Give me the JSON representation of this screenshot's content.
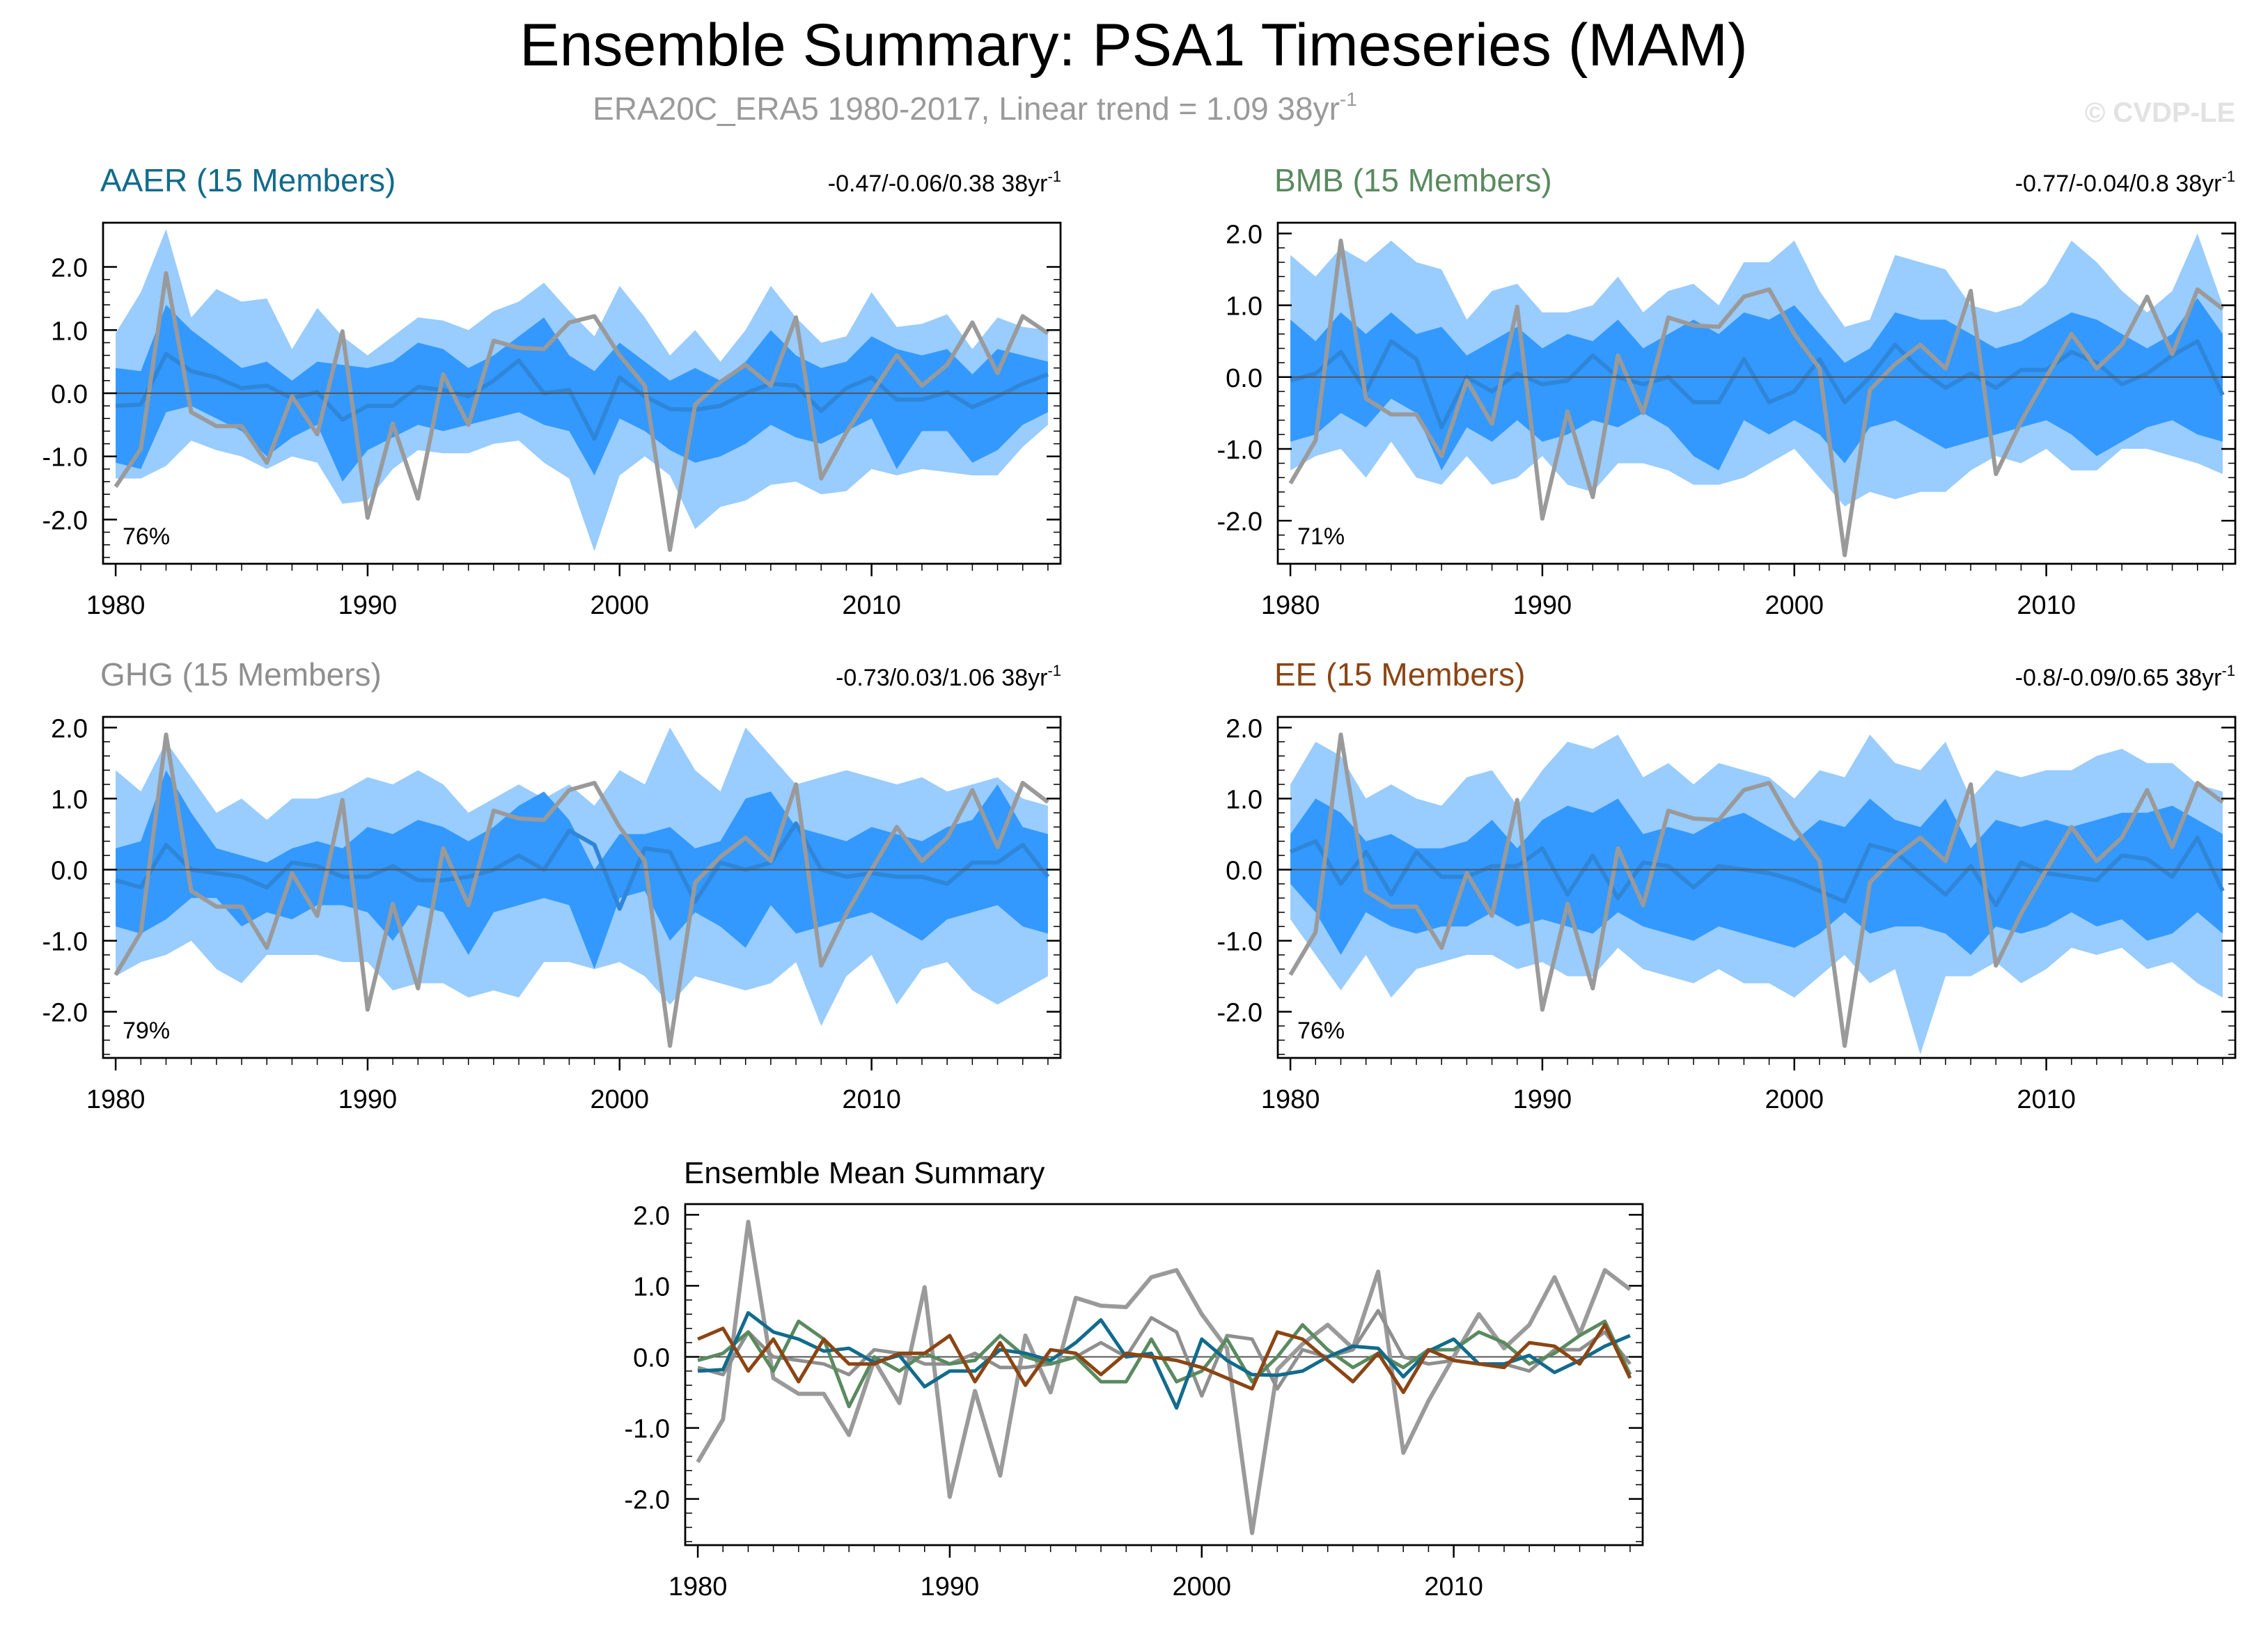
{
  "title": "Ensemble Summary: PSA1 Timeseries (MAM)",
  "subtitle": "ERA20C_ERA5 1980-2017, Linear trend = 1.09 38yr",
  "subtitle_sup": "-1",
  "watermark": "© CVDP-LE",
  "colors": {
    "band_outer": "#99ccff",
    "band_inner": "#3399ff",
    "ens_mean": "#2f86d8",
    "obs": "#9a9a9a",
    "aaer": "#116b8c",
    "bmb": "#5a8a5f",
    "ghg": "#8f8f8f",
    "ee": "#8b4513"
  },
  "chart_data": [
    {
      "id": "aaer",
      "type": "area",
      "label": "AAER (15 Members)",
      "label_color": "#116b8c",
      "trend_stat": "-0.47/-0.06/0.38 38yr",
      "trend_sup": "-1",
      "pct": "76%",
      "x_ticks": [
        "1980",
        "1990",
        "2000",
        "2010"
      ],
      "y_ticks": [
        "2.0",
        "1.0",
        "0.0",
        "-1.0",
        "-2.0"
      ],
      "ylim": [
        -2.7,
        2.7
      ],
      "xlim": [
        1979.5,
        2017.5
      ],
      "years_start": 1980,
      "outer_hi": [
        0.95,
        1.6,
        2.6,
        1.2,
        1.65,
        1.45,
        1.5,
        0.7,
        1.35,
        0.9,
        0.6,
        0.9,
        1.2,
        1.15,
        1.0,
        1.3,
        1.45,
        1.75,
        1.3,
        0.9,
        1.7,
        1.2,
        0.6,
        1.0,
        0.5,
        1.0,
        1.7,
        1.2,
        0.8,
        0.9,
        1.6,
        1.05,
        1.1,
        1.25,
        0.7,
        1.2,
        1.05,
        1.0
      ],
      "inner_hi": [
        0.4,
        0.35,
        1.4,
        1.0,
        0.7,
        0.4,
        0.5,
        0.2,
        0.5,
        0.45,
        0.4,
        0.5,
        0.8,
        0.7,
        0.4,
        0.6,
        0.9,
        1.2,
        0.6,
        0.35,
        0.8,
        0.5,
        0.2,
        0.4,
        0.2,
        0.5,
        1.0,
        0.6,
        0.4,
        0.5,
        0.9,
        0.7,
        0.6,
        0.7,
        0.3,
        0.7,
        0.6,
        0.5
      ],
      "inner_lo": [
        -1.1,
        -1.2,
        -0.3,
        -0.2,
        -0.4,
        -0.6,
        -1.0,
        -0.7,
        -0.5,
        -1.4,
        -0.9,
        -0.7,
        -0.5,
        -0.6,
        -0.5,
        -0.4,
        -0.3,
        -0.5,
        -0.6,
        -1.3,
        -0.4,
        -0.6,
        -0.9,
        -1.1,
        -1.0,
        -0.8,
        -0.5,
        -0.7,
        -0.8,
        -0.6,
        -0.4,
        -1.2,
        -0.6,
        -0.6,
        -1.1,
        -0.9,
        -0.5,
        -0.3
      ],
      "outer_lo": [
        -1.35,
        -1.35,
        -1.15,
        -0.75,
        -0.9,
        -1.0,
        -1.2,
        -1.0,
        -1.1,
        -1.75,
        -1.7,
        -1.2,
        -0.9,
        -0.95,
        -0.95,
        -0.8,
        -0.75,
        -1.1,
        -1.35,
        -2.5,
        -1.3,
        -1.0,
        -1.3,
        -2.15,
        -1.8,
        -1.7,
        -1.45,
        -1.4,
        -1.6,
        -1.55,
        -1.2,
        -1.3,
        -1.2,
        -1.25,
        -1.3,
        -1.3,
        -0.85,
        -0.5
      ],
      "ens_mean": [
        -0.2,
        -0.18,
        0.62,
        0.35,
        0.25,
        0.08,
        0.12,
        -0.08,
        0.02,
        -0.42,
        -0.2,
        -0.2,
        0.1,
        0.05,
        -0.05,
        0.2,
        0.52,
        0.0,
        0.05,
        -0.72,
        0.25,
        -0.05,
        -0.25,
        -0.26,
        -0.2,
        0.0,
        0.15,
        0.12,
        -0.28,
        0.08,
        0.25,
        -0.1,
        -0.1,
        0.02,
        -0.22,
        -0.05,
        0.15,
        0.3
      ],
      "obs": [
        -1.48,
        -0.88,
        1.9,
        -0.3,
        -0.52,
        -0.52,
        -1.1,
        -0.05,
        -0.65,
        0.98,
        -1.97,
        -0.48,
        -1.67,
        0.3,
        -0.5,
        0.83,
        0.72,
        0.7,
        1.12,
        1.22,
        0.6,
        0.12,
        -2.48,
        -0.18,
        0.18,
        0.45,
        0.12,
        1.2,
        -1.35,
        -0.62,
        0.0,
        0.6,
        0.12,
        0.45,
        1.12,
        0.32,
        1.22,
        0.95
      ]
    },
    {
      "id": "bmb",
      "type": "area",
      "label": "BMB (15 Members)",
      "label_color": "#5a8a5f",
      "trend_stat": "-0.77/-0.04/0.8 38yr",
      "trend_sup": "-1",
      "pct": "71%",
      "x_ticks": [
        "1980",
        "1990",
        "2000",
        "2010"
      ],
      "y_ticks": [
        "2.0",
        "1.0",
        "0.0",
        "-1.0",
        "-2.0"
      ],
      "ylim": [
        -2.6,
        2.15
      ],
      "xlim": [
        1979.5,
        2017.5
      ],
      "years_start": 1980,
      "outer_hi": [
        1.7,
        1.4,
        1.8,
        1.6,
        1.9,
        1.6,
        1.5,
        0.8,
        1.2,
        1.3,
        0.9,
        0.9,
        1.0,
        1.4,
        0.9,
        1.2,
        1.3,
        1.0,
        1.6,
        1.6,
        1.9,
        1.2,
        0.7,
        0.8,
        1.7,
        1.6,
        1.5,
        1.0,
        0.9,
        1.0,
        1.3,
        1.9,
        1.6,
        1.2,
        0.9,
        1.2,
        2.0,
        1.0
      ],
      "inner_hi": [
        0.8,
        0.5,
        0.9,
        0.6,
        0.9,
        0.6,
        0.7,
        0.3,
        0.5,
        0.7,
        0.4,
        0.6,
        0.5,
        0.8,
        0.4,
        0.6,
        0.8,
        0.6,
        0.9,
        0.8,
        1.0,
        0.6,
        0.2,
        0.4,
        0.9,
        0.8,
        0.8,
        0.6,
        0.4,
        0.5,
        0.7,
        0.9,
        0.8,
        0.6,
        0.4,
        0.6,
        1.1,
        0.6
      ],
      "inner_lo": [
        -0.9,
        -0.8,
        -0.5,
        -0.7,
        -0.3,
        -0.5,
        -1.3,
        -0.7,
        -0.9,
        -0.6,
        -0.9,
        -0.8,
        -0.6,
        -0.7,
        -0.5,
        -0.7,
        -1.1,
        -1.3,
        -0.6,
        -0.8,
        -0.6,
        -0.8,
        -1.2,
        -0.7,
        -0.6,
        -0.8,
        -1.0,
        -0.9,
        -0.8,
        -0.7,
        -0.6,
        -0.8,
        -1.1,
        -0.9,
        -0.7,
        -0.6,
        -0.8,
        -0.9
      ],
      "outer_lo": [
        -1.3,
        -1.1,
        -1.0,
        -1.4,
        -0.9,
        -1.4,
        -1.5,
        -1.1,
        -1.5,
        -1.4,
        -1.1,
        -1.5,
        -1.6,
        -1.2,
        -1.2,
        -1.3,
        -1.5,
        -1.5,
        -1.4,
        -1.2,
        -1.0,
        -1.4,
        -1.8,
        -1.6,
        -1.7,
        -1.6,
        -1.6,
        -1.3,
        -1.1,
        -1.2,
        -1.0,
        -1.3,
        -1.3,
        -1.0,
        -1.0,
        -1.1,
        -1.2,
        -1.35
      ],
      "ens_mean": [
        -0.05,
        0.05,
        0.35,
        -0.2,
        0.5,
        0.25,
        -0.7,
        0.0,
        -0.2,
        0.05,
        -0.1,
        -0.05,
        0.3,
        0.0,
        -0.1,
        0.0,
        -0.35,
        -0.35,
        0.25,
        -0.35,
        -0.2,
        0.25,
        -0.35,
        0.0,
        0.45,
        0.1,
        -0.15,
        0.05,
        -0.15,
        0.1,
        0.1,
        0.35,
        0.2,
        -0.1,
        0.05,
        0.3,
        0.5,
        -0.25
      ],
      "obs": [
        -1.48,
        -0.88,
        1.9,
        -0.3,
        -0.52,
        -0.52,
        -1.1,
        -0.05,
        -0.65,
        0.98,
        -1.97,
        -0.48,
        -1.67,
        0.3,
        -0.5,
        0.83,
        0.72,
        0.7,
        1.12,
        1.22,
        0.6,
        0.12,
        -2.48,
        -0.18,
        0.18,
        0.45,
        0.12,
        1.2,
        -1.35,
        -0.62,
        0.0,
        0.6,
        0.12,
        0.45,
        1.12,
        0.32,
        1.22,
        0.95
      ]
    },
    {
      "id": "ghg",
      "type": "area",
      "label": "GHG (15 Members)",
      "label_color": "#8f8f8f",
      "trend_stat": "-0.73/0.03/1.06 38yr",
      "trend_sup": "-1",
      "pct": "79%",
      "x_ticks": [
        "1980",
        "1990",
        "2000",
        "2010"
      ],
      "y_ticks": [
        "2.0",
        "1.0",
        "0.0",
        "-1.0",
        "-2.0"
      ],
      "ylim": [
        -2.65,
        2.15
      ],
      "xlim": [
        1979.5,
        2017.5
      ],
      "years_start": 1980,
      "outer_hi": [
        1.4,
        1.1,
        1.8,
        1.3,
        0.8,
        1.0,
        0.7,
        1.0,
        1.0,
        1.1,
        1.3,
        1.2,
        1.4,
        1.2,
        0.8,
        1.0,
        1.2,
        1.0,
        1.2,
        0.9,
        1.4,
        1.2,
        2.0,
        1.4,
        1.1,
        2.0,
        1.6,
        1.2,
        1.3,
        1.4,
        1.3,
        1.2,
        1.3,
        1.1,
        1.2,
        1.3,
        1.0,
        0.9
      ],
      "inner_hi": [
        0.3,
        0.4,
        1.4,
        0.8,
        0.3,
        0.2,
        0.1,
        0.3,
        0.4,
        0.3,
        0.6,
        0.5,
        0.7,
        0.6,
        0.4,
        0.6,
        0.9,
        1.1,
        0.7,
        0.0,
        0.5,
        0.5,
        0.6,
        0.3,
        0.4,
        1.0,
        1.1,
        0.6,
        0.5,
        0.4,
        0.6,
        0.5,
        0.4,
        0.6,
        0.7,
        1.2,
        0.6,
        0.5
      ],
      "inner_lo": [
        -0.8,
        -0.9,
        -0.7,
        -0.4,
        -0.4,
        -0.8,
        -0.6,
        -0.7,
        -0.5,
        -0.5,
        -0.6,
        -1.0,
        -0.5,
        -0.6,
        -1.2,
        -0.6,
        -0.5,
        -0.4,
        -0.5,
        -1.4,
        -0.4,
        -0.3,
        -1.0,
        -0.6,
        -0.8,
        -1.1,
        -0.5,
        -0.9,
        -0.8,
        -0.7,
        -0.6,
        -0.8,
        -1.0,
        -0.7,
        -0.6,
        -0.5,
        -0.8,
        -0.9
      ],
      "outer_lo": [
        -1.5,
        -1.3,
        -1.2,
        -1.0,
        -1.4,
        -1.6,
        -1.2,
        -1.2,
        -1.2,
        -1.3,
        -1.3,
        -1.7,
        -1.6,
        -1.6,
        -1.8,
        -1.7,
        -1.8,
        -1.3,
        -1.3,
        -1.4,
        -1.3,
        -1.5,
        -1.9,
        -1.5,
        -1.6,
        -1.7,
        -1.6,
        -1.3,
        -2.2,
        -1.5,
        -1.2,
        -1.9,
        -1.4,
        -1.3,
        -1.7,
        -1.9,
        -1.7,
        -1.5
      ],
      "ens_mean": [
        -0.15,
        -0.25,
        0.35,
        0.0,
        -0.05,
        -0.1,
        -0.25,
        0.1,
        0.05,
        -0.1,
        -0.1,
        0.05,
        -0.15,
        -0.15,
        -0.1,
        0.0,
        0.2,
        0.0,
        0.55,
        0.35,
        -0.55,
        0.3,
        0.25,
        -0.45,
        0.1,
        0.0,
        0.1,
        0.65,
        0.0,
        -0.1,
        -0.05,
        -0.1,
        -0.1,
        -0.2,
        0.1,
        0.1,
        0.35,
        -0.1
      ],
      "obs": [
        -1.48,
        -0.88,
        1.9,
        -0.3,
        -0.52,
        -0.52,
        -1.1,
        -0.05,
        -0.65,
        0.98,
        -1.97,
        -0.48,
        -1.67,
        0.3,
        -0.5,
        0.83,
        0.72,
        0.7,
        1.12,
        1.22,
        0.6,
        0.12,
        -2.48,
        -0.18,
        0.18,
        0.45,
        0.12,
        1.2,
        -1.35,
        -0.62,
        0.0,
        0.6,
        0.12,
        0.45,
        1.12,
        0.32,
        1.22,
        0.95
      ]
    },
    {
      "id": "ee",
      "type": "area",
      "label": "EE (15 Members)",
      "label_color": "#8b4513",
      "trend_stat": "-0.8/-0.09/0.65 38yr",
      "trend_sup": "-1",
      "pct": "76%",
      "x_ticks": [
        "1980",
        "1990",
        "2000",
        "2010"
      ],
      "y_ticks": [
        "2.0",
        "1.0",
        "0.0",
        "-1.0",
        "-2.0"
      ],
      "ylim": [
        -2.65,
        2.15
      ],
      "xlim": [
        1979.5,
        2017.5
      ],
      "years_start": 1980,
      "outer_hi": [
        1.2,
        1.8,
        1.6,
        1.0,
        1.2,
        1.0,
        0.9,
        1.3,
        1.4,
        0.9,
        1.4,
        1.8,
        1.7,
        1.9,
        1.3,
        1.5,
        1.2,
        1.5,
        1.4,
        1.3,
        1.0,
        1.4,
        1.3,
        1.9,
        1.5,
        1.4,
        1.8,
        1.0,
        1.4,
        1.3,
        1.4,
        1.4,
        1.6,
        1.7,
        1.5,
        1.5,
        1.2,
        1.1
      ],
      "inner_hi": [
        0.5,
        1.0,
        0.8,
        0.4,
        0.5,
        0.3,
        0.3,
        0.4,
        0.7,
        0.3,
        0.7,
        0.9,
        0.8,
        1.0,
        0.5,
        0.6,
        0.5,
        0.7,
        0.8,
        0.6,
        0.4,
        0.7,
        0.6,
        1.0,
        0.7,
        0.6,
        1.0,
        0.3,
        0.7,
        0.6,
        0.7,
        0.6,
        0.7,
        0.8,
        0.8,
        0.9,
        0.7,
        0.5
      ],
      "inner_lo": [
        -0.2,
        -0.6,
        -1.2,
        -0.6,
        -0.8,
        -0.9,
        -0.8,
        -0.8,
        -0.6,
        -0.8,
        -0.7,
        -0.8,
        -0.9,
        -0.6,
        -0.8,
        -0.9,
        -1.0,
        -0.8,
        -0.9,
        -1.0,
        -1.1,
        -0.9,
        -0.6,
        -0.9,
        -0.8,
        -0.8,
        -0.9,
        -1.2,
        -0.8,
        -0.9,
        -0.8,
        -0.6,
        -0.8,
        -0.7,
        -1.0,
        -0.9,
        -0.6,
        -0.9
      ],
      "outer_lo": [
        -0.7,
        -1.2,
        -1.7,
        -1.2,
        -1.8,
        -1.4,
        -1.3,
        -1.2,
        -1.2,
        -1.4,
        -1.3,
        -1.5,
        -1.5,
        -1.1,
        -1.4,
        -1.5,
        -1.6,
        -1.4,
        -1.6,
        -1.6,
        -1.8,
        -1.5,
        -1.2,
        -1.6,
        -1.4,
        -2.6,
        -1.5,
        -1.5,
        -1.3,
        -1.6,
        -1.4,
        -1.1,
        -1.2,
        -1.1,
        -1.4,
        -1.3,
        -1.6,
        -1.8
      ],
      "ens_mean": [
        0.25,
        0.4,
        -0.2,
        0.25,
        -0.35,
        0.25,
        -0.1,
        -0.1,
        0.05,
        0.05,
        0.3,
        -0.35,
        0.2,
        -0.4,
        0.1,
        0.05,
        -0.25,
        0.05,
        0.0,
        -0.05,
        -0.15,
        -0.3,
        -0.45,
        0.35,
        0.25,
        -0.05,
        -0.35,
        0.05,
        -0.5,
        0.1,
        -0.05,
        -0.1,
        -0.15,
        0.2,
        0.15,
        -0.1,
        0.45,
        -0.3
      ],
      "obs": [
        -1.48,
        -0.88,
        1.9,
        -0.3,
        -0.52,
        -0.52,
        -1.1,
        -0.05,
        -0.65,
        0.98,
        -1.97,
        -0.48,
        -1.67,
        0.3,
        -0.5,
        0.83,
        0.72,
        0.7,
        1.12,
        1.22,
        0.6,
        0.12,
        -2.48,
        -0.18,
        0.18,
        0.45,
        0.12,
        1.2,
        -1.35,
        -0.62,
        0.0,
        0.6,
        0.12,
        0.45,
        1.12,
        0.32,
        1.22,
        0.95
      ]
    },
    {
      "id": "summary",
      "type": "line",
      "title": "Ensemble Mean Summary",
      "x_ticks": [
        "1980",
        "1990",
        "2000",
        "2010"
      ],
      "y_ticks": [
        "2.0",
        "1.0",
        "0.0",
        "-1.0",
        "-2.0"
      ],
      "ylim": [
        -2.65,
        2.15
      ],
      "xlim": [
        1979.5,
        2017.5
      ],
      "series_ref": [
        "obs",
        "aaer",
        "bmb",
        "ghg",
        "ee"
      ]
    }
  ]
}
